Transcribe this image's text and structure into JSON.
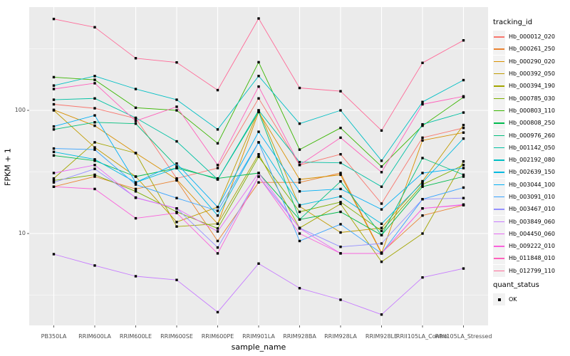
{
  "colors": {
    "panel_bg": "#EBEBEB",
    "grid": "#FFFFFF",
    "tick_label": "#4D4D4D",
    "axis_tick": "#333333",
    "legend_key_bg": "#F2F2F2",
    "point": "#000000"
  },
  "chart_data": {
    "type": "line",
    "title": "",
    "xlabel": "sample_name",
    "ylabel": "FPKM + 1",
    "legend_title": "tracking_id",
    "legend_position": "right",
    "grid": true,
    "y_axis": {
      "scale": "log10",
      "ticks": [
        100,
        10
      ],
      "tick_labels": [
        "100",
        "10"
      ],
      "minor_breaks": [
        316.2,
        31.62,
        3.162
      ]
    },
    "x_categories": [
      "PB350LA",
      "RRIM600LA",
      "RRIM600LE",
      "RRIM600SE",
      "RRIM600PE",
      "RRIM901LA",
      "RRIM928BA",
      "RRIM928LA",
      "RRIM928LE",
      "RRII105LA_Control",
      "RRII105LA_Stressed"
    ],
    "point_shape": "filled-square",
    "series": [
      {
        "name": "Hb_000012_020",
        "color": "#F8766D",
        "values": [
          112,
          104,
          86,
          28,
          34,
          125,
          36,
          44,
          17.5,
          60,
          72
        ]
      },
      {
        "name": "Hb_000261_250",
        "color": "#EA8331",
        "values": [
          24,
          29,
          23,
          27,
          8.7,
          26,
          26,
          31,
          7.0,
          14,
          17
        ]
      },
      {
        "name": "Hb_000290_020",
        "color": "#D89000",
        "values": [
          101,
          75,
          45,
          27.5,
          12,
          97,
          27.5,
          30,
          6.9,
          57,
          66
        ]
      },
      {
        "name": "Hb_000392_050",
        "color": "#C09B00",
        "values": [
          100,
          50,
          29,
          12.4,
          16.4,
          100,
          16.6,
          10.2,
          11.1,
          26.6,
          76
        ]
      },
      {
        "name": "Hb_000394_190",
        "color": "#A3A500",
        "values": [
          28,
          55,
          45,
          11.4,
          12,
          44,
          11.1,
          17.4,
          5.9,
          10,
          38.5
        ]
      },
      {
        "name": "Hb_000785_030",
        "color": "#7CAE00",
        "values": [
          27,
          30,
          22,
          15,
          11,
          42,
          15,
          18,
          10.5,
          25,
          36
        ]
      },
      {
        "name": "Hb_000803_110",
        "color": "#39B600",
        "values": [
          186,
          177,
          105,
          100,
          54,
          246,
          48,
          72,
          35,
          75,
          128
        ]
      },
      {
        "name": "Hb_000808_250",
        "color": "#00BB4E",
        "values": [
          43,
          39,
          29,
          34,
          28,
          31,
          13,
          15,
          9.7,
          24,
          29
        ]
      },
      {
        "name": "Hb_000976_260",
        "color": "#00BF7D",
        "values": [
          70,
          80,
          78,
          35,
          27.5,
          97,
          13,
          26.5,
          9.7,
          41,
          30
        ]
      },
      {
        "name": "Hb_001142_050",
        "color": "#00C1A3",
        "values": [
          122,
          125,
          87,
          56,
          27.5,
          100,
          38,
          37.5,
          24,
          77,
          96
        ]
      },
      {
        "name": "Hb_002192_080",
        "color": "#00BFC4",
        "values": [
          159,
          190,
          149,
          122,
          70,
          190,
          78,
          100,
          39,
          117,
          176
        ]
      },
      {
        "name": "Hb_002639_150",
        "color": "#00BAE0",
        "values": [
          46,
          40,
          26,
          34,
          14,
          55,
          17,
          20,
          12,
          26,
          59
        ]
      },
      {
        "name": "Hb_003044_100",
        "color": "#00B0F6",
        "values": [
          74,
          91,
          26,
          37,
          16.4,
          67,
          22,
          23,
          15.7,
          31,
          34
        ]
      },
      {
        "name": "Hb_003091_010",
        "color": "#35A2FF",
        "values": [
          49,
          48,
          25,
          19.4,
          15.3,
          55,
          8.7,
          11.9,
          6.9,
          19,
          23.6
        ]
      },
      {
        "name": "Hb_003467_010",
        "color": "#9590FF",
        "values": [
          26,
          33.5,
          19.6,
          16,
          7.7,
          29,
          11.1,
          7.8,
          8.3,
          19,
          19.4
        ]
      },
      {
        "name": "Hb_003849_060",
        "color": "#C77CFF",
        "values": [
          6.8,
          5.5,
          4.5,
          4.2,
          2.3,
          5.7,
          3.6,
          2.9,
          2.2,
          4.4,
          5.2
        ]
      },
      {
        "name": "Hb_004450_060",
        "color": "#E76BF3",
        "values": [
          31,
          36,
          19.5,
          16,
          10.4,
          31,
          11,
          6.9,
          6.9,
          16,
          17.2
        ]
      },
      {
        "name": "Hb_009222_010",
        "color": "#FA62DB",
        "values": [
          24,
          23,
          13.3,
          14.7,
          6.9,
          29,
          10,
          6.9,
          6.9,
          16,
          17
        ]
      },
      {
        "name": "Hb_011848_010",
        "color": "#FF62BC",
        "values": [
          149,
          166,
          82,
          107,
          36,
          156,
          36,
          60,
          31.5,
          112,
          130
        ]
      },
      {
        "name": "Hb_012799_110",
        "color": "#FF6A98",
        "values": [
          552,
          473,
          265,
          245,
          146,
          557,
          152,
          143,
          68.6,
          243,
          370
        ]
      }
    ],
    "quant_legend": {
      "title": "quant_status",
      "items": [
        {
          "label": "OK",
          "marker": "black-square"
        }
      ]
    }
  }
}
